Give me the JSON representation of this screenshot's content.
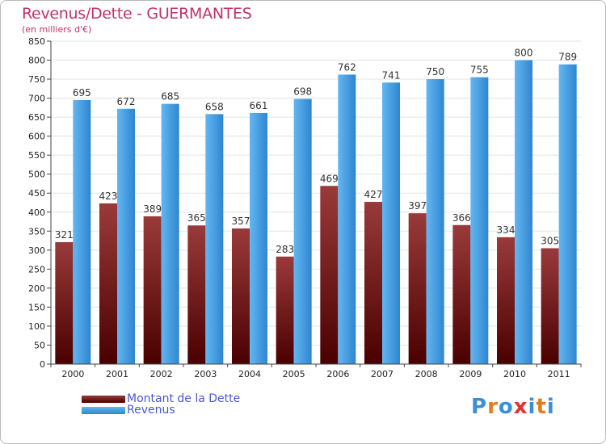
{
  "chart_data": {
    "type": "bar",
    "title": "Revenus/Dette - GUERMANTES",
    "subtitle": "(en milliers d'€)",
    "categories": [
      "2000",
      "2001",
      "2002",
      "2003",
      "2004",
      "2005",
      "2006",
      "2007",
      "2008",
      "2009",
      "2010",
      "2011"
    ],
    "series": [
      {
        "name": "Montant de la Dette",
        "color": "#7a1a1a",
        "values": [
          321,
          423,
          389,
          365,
          357,
          283,
          469,
          427,
          397,
          366,
          334,
          305
        ]
      },
      {
        "name": "Revenus",
        "color": "#4aa3e6",
        "values": [
          695,
          672,
          685,
          658,
          661,
          698,
          762,
          741,
          750,
          755,
          800,
          789
        ]
      }
    ],
    "ylim": [
      0,
      850
    ],
    "yticks": [
      0,
      50,
      100,
      150,
      200,
      250,
      300,
      350,
      400,
      450,
      500,
      550,
      600,
      650,
      700,
      750,
      800,
      850
    ],
    "grid": true,
    "legend_position": "bottom-left"
  },
  "logo": {
    "letters": [
      "P",
      "r",
      "o",
      "x",
      "i",
      "t",
      "i"
    ],
    "colors": [
      "#3a8fd8",
      "#e57b1f",
      "#3a8fd8",
      "#e53030",
      "#3a8fd8",
      "#e57b1f",
      "#3a8fd8"
    ]
  }
}
